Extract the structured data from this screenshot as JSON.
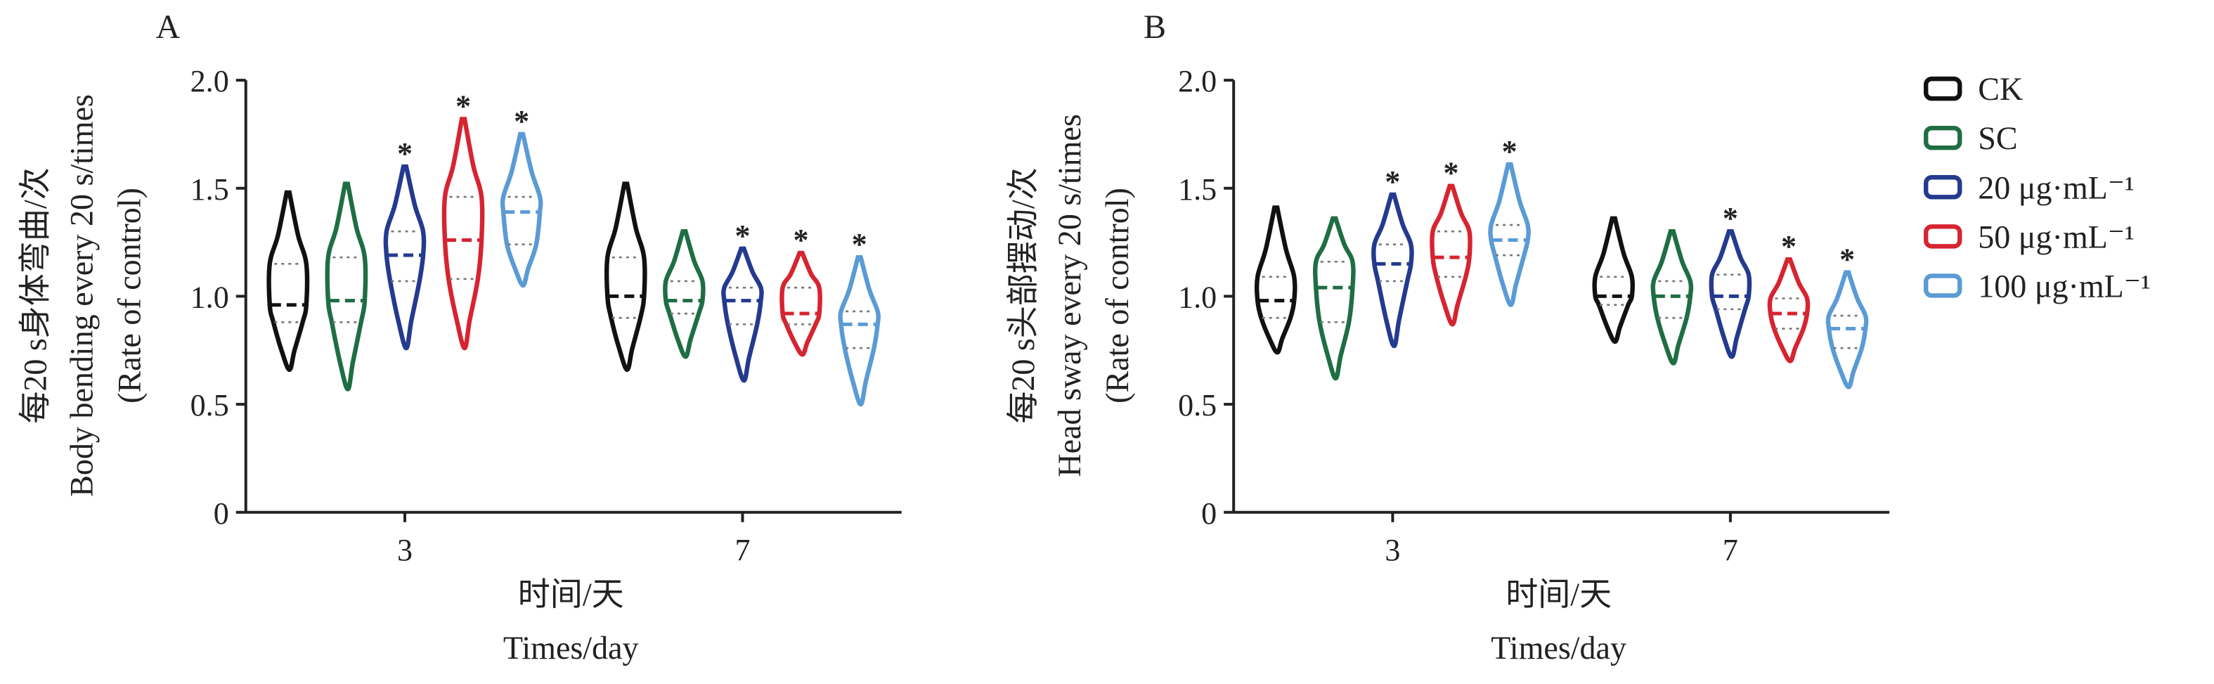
{
  "chart_data": [
    {
      "type": "violin",
      "panel": "A",
      "ylabel": [
        "每20 s身体弯曲/次",
        "Body bending every 20 s/times",
        "(Rate of control)"
      ],
      "xlabel": [
        "时间/天",
        "Times/day"
      ],
      "categories": [
        "3",
        "7"
      ],
      "ylim": [
        0,
        2.0
      ],
      "yticks": [
        0,
        0.5,
        {
          "value": 1.0,
          "label": "1.0"
        },
        1.5,
        {
          "value": 2.0,
          "label": "2.0"
        }
      ],
      "series": [
        {
          "color": "#111111",
          "min": [
            0.66,
            0.66
          ],
          "q1": [
            0.88,
            0.9
          ],
          "median": [
            0.96,
            1.0
          ],
          "q3": [
            1.15,
            1.18
          ],
          "max": [
            1.48,
            1.52
          ]
        },
        {
          "color": "#1f6e43",
          "min": [
            0.57,
            0.72
          ],
          "q1": [
            0.88,
            0.92
          ],
          "median": [
            0.98,
            0.98
          ],
          "q3": [
            1.18,
            1.07
          ],
          "max": [
            1.52,
            1.3
          ]
        },
        {
          "color": "#233a8f",
          "min": [
            0.76,
            0.61
          ],
          "q1": [
            1.07,
            0.87
          ],
          "median": [
            1.19,
            0.98
          ],
          "q3": [
            1.3,
            1.04
          ],
          "max": [
            1.6,
            1.22
          ],
          "significance": [
            "*",
            "*"
          ]
        },
        {
          "color": "#d62430",
          "min": [
            0.76,
            0.73
          ],
          "q1": [
            1.08,
            0.87
          ],
          "median": [
            1.26,
            0.92
          ],
          "q3": [
            1.46,
            1.04
          ],
          "max": [
            1.82,
            1.2
          ],
          "significance": [
            "*",
            "*"
          ]
        },
        {
          "color": "#5b9bd5",
          "min": [
            1.05,
            0.5
          ],
          "q1": [
            1.24,
            0.76
          ],
          "median": [
            1.39,
            0.87
          ],
          "q3": [
            1.46,
            0.93
          ],
          "max": [
            1.75,
            1.18
          ],
          "significance": [
            "*",
            "*"
          ]
        }
      ]
    },
    {
      "type": "violin",
      "panel": "B",
      "ylabel": [
        "每20 s头部摆动/次",
        "Head sway every 20 s/times",
        "(Rate of control)"
      ],
      "xlabel": [
        "时间/天",
        "Times/day"
      ],
      "categories": [
        "3",
        "7"
      ],
      "ylim": [
        0,
        2.0
      ],
      "yticks": [
        0,
        0.5,
        {
          "value": 1.0,
          "label": "1.0"
        },
        1.5,
        {
          "value": 2.0,
          "label": "2.0"
        }
      ],
      "legend": "right",
      "series": [
        {
          "name": "CK",
          "color": "#111111",
          "min": [
            0.74,
            0.79
          ],
          "q1": [
            0.9,
            0.96
          ],
          "median": [
            0.98,
            1.0
          ],
          "q3": [
            1.09,
            1.09
          ],
          "max": [
            1.41,
            1.36
          ]
        },
        {
          "name": "SC",
          "color": "#1f6e43",
          "min": [
            0.62,
            0.69
          ],
          "q1": [
            0.88,
            0.9
          ],
          "median": [
            1.04,
            1.0
          ],
          "q3": [
            1.16,
            1.07
          ],
          "max": [
            1.36,
            1.3
          ]
        },
        {
          "name": "20 μg·mL⁻¹",
          "color": "#233a8f",
          "min": [
            0.77,
            0.72
          ],
          "q1": [
            1.07,
            0.94
          ],
          "median": [
            1.15,
            1.0
          ],
          "q3": [
            1.24,
            1.1
          ],
          "max": [
            1.47,
            1.3
          ],
          "significance": [
            "*",
            "*"
          ]
        },
        {
          "name": "50 μg·mL⁻¹",
          "color": "#d62430",
          "min": [
            0.87,
            0.7
          ],
          "q1": [
            1.09,
            0.85
          ],
          "median": [
            1.18,
            0.92
          ],
          "q3": [
            1.3,
            0.99
          ],
          "max": [
            1.51,
            1.17
          ],
          "significance": [
            "*",
            "*"
          ]
        },
        {
          "name": "100 μg·mL⁻¹",
          "color": "#5b9bd5",
          "min": [
            0.96,
            0.58
          ],
          "q1": [
            1.19,
            0.76
          ],
          "median": [
            1.26,
            0.85
          ],
          "q3": [
            1.33,
            0.91
          ],
          "max": [
            1.61,
            1.11
          ],
          "significance": [
            "*",
            "*"
          ]
        }
      ]
    }
  ]
}
